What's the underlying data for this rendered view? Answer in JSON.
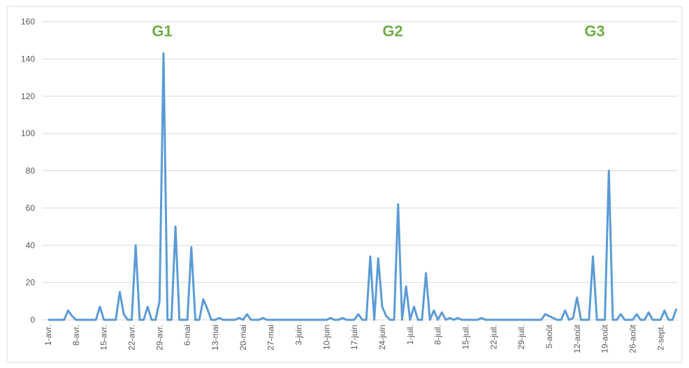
{
  "chart_data": {
    "type": "line",
    "annotations": [
      "G1",
      "G2",
      "G3"
    ],
    "categories": [
      "1-avr.",
      null,
      null,
      null,
      null,
      null,
      null,
      "8-avr.",
      null,
      null,
      null,
      null,
      null,
      null,
      "15-avr.",
      null,
      null,
      null,
      null,
      null,
      null,
      "22-avr.",
      null,
      null,
      null,
      null,
      null,
      null,
      "29-avr.",
      null,
      null,
      null,
      null,
      null,
      null,
      "6-mai",
      null,
      null,
      null,
      null,
      null,
      null,
      "13-mai",
      null,
      null,
      null,
      null,
      null,
      null,
      "20-mai",
      null,
      null,
      null,
      null,
      null,
      null,
      "27-mai",
      null,
      null,
      null,
      null,
      null,
      null,
      "3-juin",
      null,
      null,
      null,
      null,
      null,
      null,
      "10-juin",
      null,
      null,
      null,
      null,
      null,
      null,
      "17-juin",
      null,
      null,
      null,
      null,
      null,
      null,
      "24-juin",
      null,
      null,
      null,
      null,
      null,
      null,
      "1-juil.",
      null,
      null,
      null,
      null,
      null,
      null,
      "8-juil.",
      null,
      null,
      null,
      null,
      null,
      null,
      "15-juil.",
      null,
      null,
      null,
      null,
      null,
      null,
      "22-juil.",
      null,
      null,
      null,
      null,
      null,
      null,
      "29-juil.",
      null,
      null,
      null,
      null,
      null,
      null,
      "5-août",
      null,
      null,
      null,
      null,
      null,
      null,
      "12-août",
      null,
      null,
      null,
      null,
      null,
      null,
      "19-août",
      null,
      null,
      null,
      null,
      null,
      null,
      "26-août",
      null,
      null,
      null,
      null,
      null,
      null,
      "2-sept.",
      null,
      null,
      null,
      null
    ],
    "values": [
      0,
      0,
      0,
      0,
      0,
      5,
      2,
      0,
      0,
      0,
      0,
      0,
      0,
      7,
      0,
      0,
      0,
      0,
      15,
      3,
      0,
      0,
      40,
      0,
      0,
      7,
      0,
      0,
      10,
      143,
      0,
      0,
      50,
      0,
      0,
      0,
      39,
      0,
      0,
      11,
      6,
      0,
      0,
      1,
      0,
      0,
      0,
      0,
      1,
      0,
      3,
      0,
      0,
      0,
      1,
      0,
      0,
      0,
      0,
      0,
      0,
      0,
      0,
      0,
      0,
      0,
      0,
      0,
      0,
      0,
      0,
      1,
      0,
      0,
      1,
      0,
      0,
      0,
      3,
      0,
      0,
      34,
      0,
      33,
      7,
      2,
      0,
      0,
      62,
      0,
      18,
      0,
      7,
      0,
      0,
      25,
      0,
      5,
      0,
      4,
      0,
      1,
      0,
      1,
      0,
      0,
      0,
      0,
      0,
      1,
      0,
      0,
      0,
      0,
      0,
      0,
      0,
      0,
      0,
      0,
      0,
      0,
      0,
      0,
      0,
      3,
      2,
      1,
      0,
      0,
      5,
      0,
      1,
      12,
      0,
      0,
      0,
      34,
      0,
      0,
      0,
      80,
      0,
      0,
      3,
      0,
      0,
      0,
      3,
      0,
      0,
      4,
      0,
      0,
      0,
      5,
      0,
      0,
      6
    ],
    "color": "#5b9bd5",
    "annotation_color": "#70ad47",
    "ylim": [
      0,
      160
    ],
    "yticks": [
      0,
      20,
      40,
      60,
      80,
      100,
      120,
      140,
      160
    ],
    "grid": true
  }
}
